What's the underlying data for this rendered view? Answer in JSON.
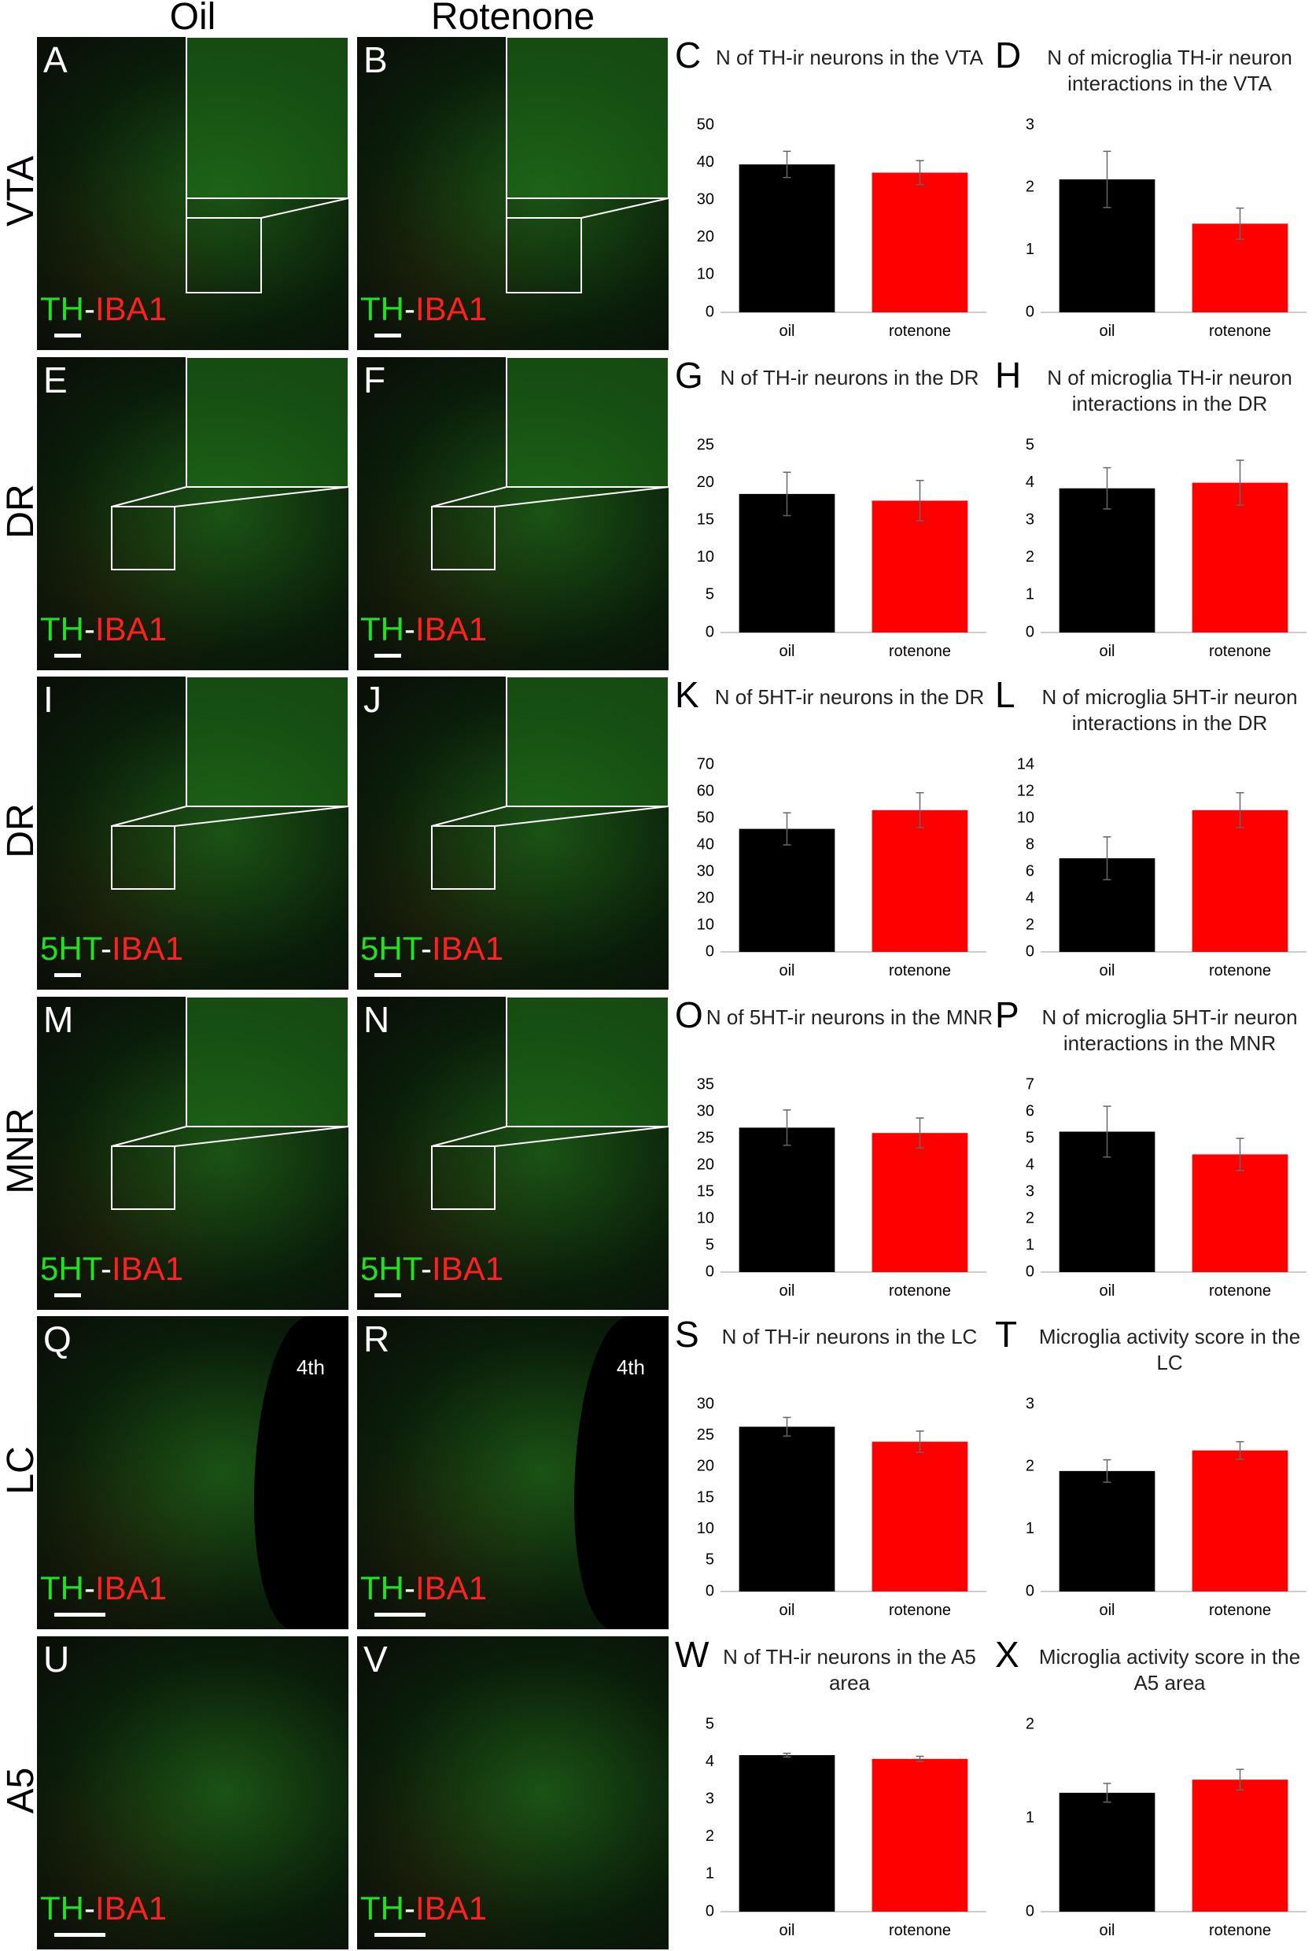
{
  "header": {
    "columns": [
      "Oil",
      "Rotenone"
    ]
  },
  "rows": [
    {
      "label": "VTA",
      "panels": [
        {
          "letter": "A",
          "marker": "TH",
          "separator": "-",
          "counterstain": "IBA1"
        },
        {
          "letter": "B",
          "marker": "TH",
          "separator": "-",
          "counterstain": "IBA1"
        }
      ]
    },
    {
      "label": "DR",
      "panels": [
        {
          "letter": "E",
          "marker": "TH",
          "separator": "-",
          "counterstain": "IBA1"
        },
        {
          "letter": "F",
          "marker": "TH",
          "separator": "-",
          "counterstain": "IBA1"
        }
      ]
    },
    {
      "label": "DR",
      "panels": [
        {
          "letter": "I",
          "marker": "5HT",
          "separator": "-",
          "counterstain": "IBA1"
        },
        {
          "letter": "J",
          "marker": "5HT",
          "separator": "-",
          "counterstain": "IBA1"
        }
      ]
    },
    {
      "label": "MNR",
      "panels": [
        {
          "letter": "M",
          "marker": "5HT",
          "separator": "-",
          "counterstain": "IBA1"
        },
        {
          "letter": "N",
          "marker": "5HT",
          "separator": "-",
          "counterstain": "IBA1"
        }
      ]
    },
    {
      "label": "LC",
      "panels": [
        {
          "letter": "Q",
          "marker": "TH",
          "separator": "-",
          "counterstain": "IBA1",
          "annotation": "4th"
        },
        {
          "letter": "R",
          "marker": "TH",
          "separator": "-",
          "counterstain": "IBA1",
          "annotation": "4th"
        }
      ]
    },
    {
      "label": "A5",
      "panels": [
        {
          "letter": "U",
          "marker": "TH",
          "separator": "-",
          "counterstain": "IBA1"
        },
        {
          "letter": "V",
          "marker": "TH",
          "separator": "-",
          "counterstain": "IBA1"
        }
      ]
    }
  ],
  "chart_data": [
    {
      "type": "bar",
      "letter": "C",
      "title": "N of TH-ir neurons in the VTA",
      "categories": [
        "oil",
        "rotenone"
      ],
      "values": [
        39.5,
        37.3
      ],
      "errors": [
        3.5,
        3.2
      ],
      "colors": [
        "#000000",
        "#ff0000"
      ],
      "ylim": [
        0,
        50
      ],
      "yticks": [
        0,
        10,
        20,
        30,
        40,
        50
      ]
    },
    {
      "type": "bar",
      "letter": "D",
      "title": "N of microglia TH-ir neuron interactions in the VTA",
      "categories": [
        "oil",
        "rotenone"
      ],
      "values": [
        2.13,
        1.42
      ],
      "errors": [
        0.45,
        0.25
      ],
      "colors": [
        "#000000",
        "#ff0000"
      ],
      "ylim": [
        0,
        3
      ],
      "yticks": [
        0,
        1,
        2,
        3
      ]
    },
    {
      "type": "bar",
      "letter": "G",
      "title": "N of TH-ir neurons in the DR",
      "categories": [
        "oil",
        "rotenone"
      ],
      "values": [
        18.5,
        17.6
      ],
      "errors": [
        2.9,
        2.7
      ],
      "colors": [
        "#000000",
        "#ff0000"
      ],
      "ylim": [
        0,
        25
      ],
      "yticks": [
        0,
        5,
        10,
        15,
        20,
        25
      ]
    },
    {
      "type": "bar",
      "letter": "H",
      "title": "N of microglia TH-ir neuron interactions in the DR",
      "categories": [
        "oil",
        "rotenone"
      ],
      "values": [
        3.85,
        4.0
      ],
      "errors": [
        0.55,
        0.6
      ],
      "colors": [
        "#000000",
        "#ff0000"
      ],
      "ylim": [
        0,
        5
      ],
      "yticks": [
        0,
        1,
        2,
        3,
        4,
        5
      ]
    },
    {
      "type": "bar",
      "letter": "K",
      "title": "N of 5HT-ir neurons in the DR",
      "categories": [
        "oil",
        "rotenone"
      ],
      "values": [
        46,
        53
      ],
      "errors": [
        6,
        6.5
      ],
      "colors": [
        "#000000",
        "#ff0000"
      ],
      "ylim": [
        0,
        70
      ],
      "yticks": [
        0,
        10,
        20,
        30,
        40,
        50,
        60,
        70
      ]
    },
    {
      "type": "bar",
      "letter": "L",
      "title": "N of microglia 5HT-ir neuron interactions in the DR",
      "categories": [
        "oil",
        "rotenone"
      ],
      "values": [
        7.0,
        10.6
      ],
      "errors": [
        1.6,
        1.3
      ],
      "colors": [
        "#000000",
        "#ff0000"
      ],
      "ylim": [
        0,
        14
      ],
      "yticks": [
        0,
        2,
        4,
        6,
        8,
        10,
        12,
        14
      ]
    },
    {
      "type": "bar",
      "letter": "O",
      "title": "N of 5HT-ir neurons in the MNR",
      "categories": [
        "oil",
        "rotenone"
      ],
      "values": [
        27,
        26
      ],
      "errors": [
        3.3,
        2.8
      ],
      "colors": [
        "#000000",
        "#ff0000"
      ],
      "ylim": [
        0,
        35
      ],
      "yticks": [
        0,
        5,
        10,
        15,
        20,
        25,
        30,
        35
      ]
    },
    {
      "type": "bar",
      "letter": "P",
      "title": "N of microglia 5HT-ir neuron interactions in the MNR",
      "categories": [
        "oil",
        "rotenone"
      ],
      "values": [
        5.25,
        4.4
      ],
      "errors": [
        0.95,
        0.6
      ],
      "colors": [
        "#000000",
        "#ff0000"
      ],
      "ylim": [
        0,
        7
      ],
      "yticks": [
        0,
        1,
        2,
        3,
        4,
        5,
        6,
        7
      ]
    },
    {
      "type": "bar",
      "letter": "S",
      "title": "N of TH-ir neurons in the LC",
      "categories": [
        "oil",
        "rotenone"
      ],
      "values": [
        26.4,
        24
      ],
      "errors": [
        1.5,
        1.7
      ],
      "colors": [
        "#000000",
        "#ff0000"
      ],
      "ylim": [
        0,
        30
      ],
      "yticks": [
        0,
        5,
        10,
        15,
        20,
        25,
        30
      ]
    },
    {
      "type": "bar",
      "letter": "T",
      "title": "Microglia activity score in the LC",
      "categories": [
        "oil",
        "rotenone"
      ],
      "values": [
        1.93,
        2.26
      ],
      "errors": [
        0.18,
        0.14
      ],
      "colors": [
        "#000000",
        "#ff0000"
      ],
      "ylim": [
        0,
        3
      ],
      "yticks": [
        0,
        1,
        2,
        3
      ]
    },
    {
      "type": "bar",
      "letter": "W",
      "title": "N of TH-ir neurons in the A5 area",
      "categories": [
        "oil",
        "rotenone"
      ],
      "values": [
        4.18,
        4.08
      ],
      "errors": [
        0.05,
        0.07
      ],
      "colors": [
        "#000000",
        "#ff0000"
      ],
      "ylim": [
        0,
        5
      ],
      "yticks": [
        0,
        1,
        2,
        3,
        4,
        5
      ]
    },
    {
      "type": "bar",
      "letter": "X",
      "title": "Microglia activity score in the A5 area",
      "categories": [
        "oil",
        "rotenone"
      ],
      "values": [
        1.27,
        1.41
      ],
      "errors": [
        0.1,
        0.11
      ],
      "colors": [
        "#000000",
        "#ff0000"
      ],
      "ylim": [
        0,
        2
      ],
      "yticks": [
        0,
        1,
        2
      ]
    }
  ]
}
